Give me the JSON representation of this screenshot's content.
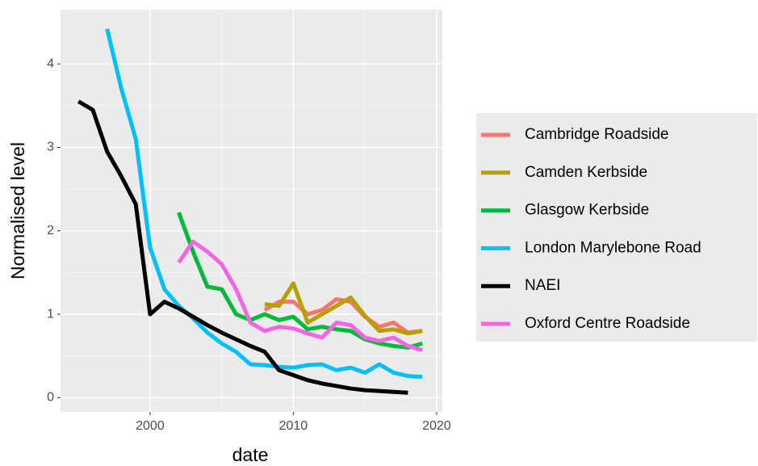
{
  "chart_data": {
    "type": "line",
    "xlabel": "date",
    "ylabel": "Normalised level",
    "x": [
      1995,
      1996,
      1997,
      1998,
      1999,
      2000,
      2001,
      2002,
      2003,
      2004,
      2005,
      2006,
      2007,
      2008,
      2009,
      2010,
      2011,
      2012,
      2013,
      2014,
      2015,
      2016,
      2017,
      2018,
      2019
    ],
    "series": [
      {
        "name": "Cambridge Roadside",
        "color": "#f8766d",
        "values": [
          null,
          null,
          null,
          null,
          null,
          null,
          null,
          null,
          null,
          null,
          null,
          null,
          null,
          1.05,
          1.15,
          1.15,
          1.0,
          1.05,
          1.18,
          1.15,
          0.97,
          0.85,
          0.9,
          0.78,
          0.8
        ]
      },
      {
        "name": "Camden Kerbside",
        "color": "#b79f00",
        "values": [
          null,
          null,
          null,
          null,
          null,
          null,
          null,
          null,
          null,
          null,
          null,
          null,
          null,
          1.12,
          1.1,
          1.37,
          0.9,
          1.0,
          1.1,
          1.2,
          0.98,
          0.8,
          0.82,
          0.77,
          0.8
        ]
      },
      {
        "name": "Glasgow Kerbside",
        "color": "#00ba38",
        "values": [
          null,
          null,
          null,
          null,
          null,
          null,
          null,
          2.22,
          1.75,
          1.33,
          1.3,
          1.0,
          0.93,
          1.0,
          0.93,
          0.97,
          0.82,
          0.85,
          0.82,
          0.8,
          0.7,
          0.65,
          0.62,
          0.6,
          0.65
        ]
      },
      {
        "name": "London Marylebone Road",
        "color": "#00bfff",
        "values": [
          null,
          null,
          4.42,
          3.7,
          3.1,
          1.8,
          1.3,
          1.1,
          0.95,
          0.78,
          0.65,
          0.55,
          0.4,
          0.39,
          0.37,
          0.36,
          0.39,
          0.4,
          0.33,
          0.36,
          0.3,
          0.4,
          0.3,
          0.26,
          0.25
        ]
      },
      {
        "name": "NAEI",
        "color": "#000000",
        "values": [
          3.55,
          3.45,
          2.95,
          2.65,
          2.32,
          1.0,
          1.15,
          1.07,
          0.97,
          0.87,
          0.78,
          0.7,
          0.62,
          0.55,
          0.33,
          0.27,
          0.21,
          0.17,
          0.14,
          0.11,
          0.09,
          0.08,
          0.07,
          0.06,
          null
        ]
      },
      {
        "name": "Oxford Centre Roadside",
        "color": "#f564e3",
        "values": [
          null,
          null,
          null,
          null,
          null,
          null,
          null,
          1.62,
          1.87,
          1.75,
          1.6,
          1.3,
          0.9,
          0.8,
          0.85,
          0.83,
          0.77,
          0.72,
          0.9,
          0.87,
          0.72,
          0.68,
          0.72,
          0.62,
          0.57
        ]
      }
    ],
    "xlim": [
      1993.75,
      2020.4
    ],
    "xticks": [
      2000,
      2010,
      2020
    ],
    "ylim": [
      -0.17,
      4.65
    ],
    "yticks": [
      0,
      1,
      2,
      3,
      4
    ],
    "grid": true,
    "legend": "right"
  }
}
